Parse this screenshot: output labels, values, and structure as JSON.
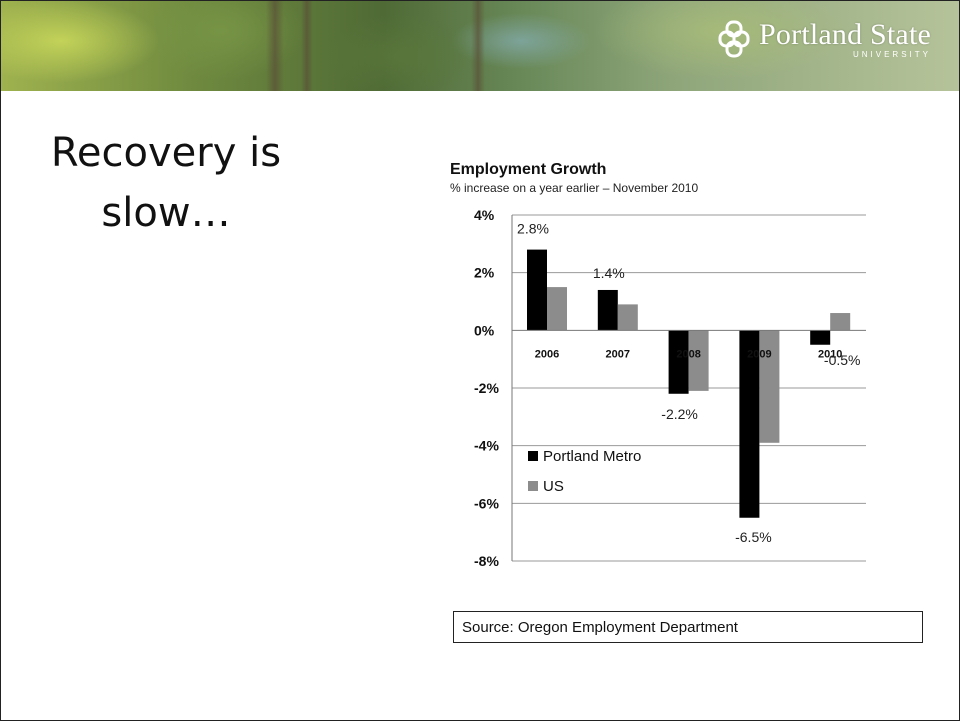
{
  "header": {
    "logo_name": "Portland State",
    "logo_sub": "UNIVERSITY"
  },
  "slide": {
    "title_line1": "Recovery is",
    "title_line2": "slow…",
    "source": "Source: Oregon Employment Department"
  },
  "colors": {
    "portland_metro": "#000000",
    "us": "#8c8c8c"
  },
  "chart_data": {
    "type": "bar",
    "title": "Employment Growth",
    "subtitle": "% increase on a year earlier – November 2010",
    "categories": [
      "2006",
      "2007",
      "2008",
      "2009",
      "2010"
    ],
    "series": [
      {
        "name": "Portland Metro",
        "values": [
          2.8,
          1.4,
          -2.2,
          -6.5,
          -0.5
        ]
      },
      {
        "name": "US",
        "values": [
          1.5,
          0.9,
          -2.1,
          -3.9,
          0.6
        ]
      }
    ],
    "data_labels": [
      "2.8%",
      "1.4%",
      "-2.2%",
      "-6.5%",
      "-0.5%"
    ],
    "ylim": [
      -8,
      4
    ],
    "yticks": [
      4,
      2,
      0,
      -2,
      -4,
      -6,
      -8
    ],
    "ytick_labels": [
      "4%",
      "2%",
      "0%",
      "-2%",
      "-4%",
      "-6%",
      "-8%"
    ],
    "xlabel": "",
    "ylabel": "",
    "grid": true,
    "legend_position": "lower-left"
  }
}
